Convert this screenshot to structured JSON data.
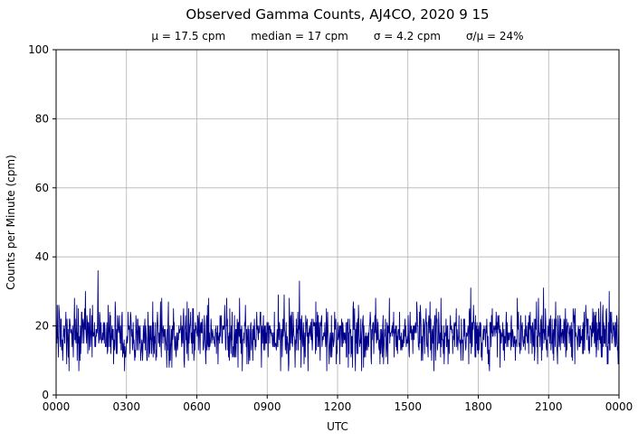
{
  "chart_data": {
    "type": "line",
    "title": "Observed Gamma Counts, AJ4CO, 2020 9 15",
    "stats_labels": [
      "μ = 17.5 cpm",
      "median = 17 cpm",
      "σ = 4.2 cpm",
      "σ/μ = 24%"
    ],
    "stats": {
      "mean_cpm": 17.5,
      "median_cpm": 17,
      "sigma_cpm": 4.2,
      "sigma_over_mean_pct": 24
    },
    "xlabel": "UTC",
    "ylabel": "Counts per Minute (cpm)",
    "x_tick_labels": [
      "0000",
      "0300",
      "0600",
      "0900",
      "1200",
      "1500",
      "1800",
      "2100",
      "0000"
    ],
    "x_range_minutes": [
      0,
      1440
    ],
    "y_ticks": [
      0,
      20,
      40,
      60,
      80,
      100
    ],
    "ylim": [
      0,
      100
    ],
    "grid": true,
    "legend": false,
    "series": [
      {
        "name": "observed gamma counts per minute",
        "color": "#00008B",
        "n_points": 1440,
        "mean": 17.5,
        "sigma": 4.2,
        "clip": [
          7,
          31
        ],
        "seed": 20200915,
        "spikes": [
          {
            "minute": 107,
            "value": 36
          },
          {
            "minute": 622,
            "value": 33
          },
          {
            "minute": 1060,
            "value": 31
          },
          {
            "minute": 1246,
            "value": 31
          }
        ]
      }
    ]
  },
  "colors": {
    "line": "#00008B",
    "grid": "#b2b2b2",
    "axis": "#000000",
    "background": "#ffffff",
    "text": "#000000"
  }
}
